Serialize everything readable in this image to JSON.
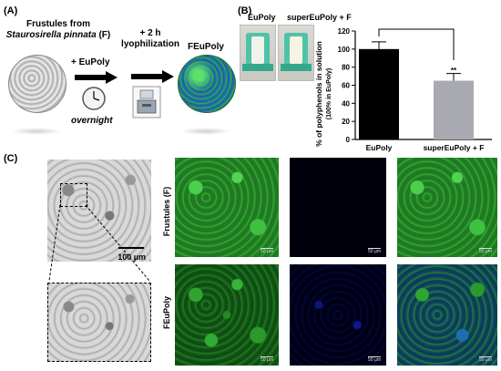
{
  "panel_a": {
    "label": "(A)",
    "frustules_title_line1": "Frustules from",
    "frustules_title_line2": "Staurosirella pinnata",
    "frustules_title_suffix": " (F)",
    "step1_reagent": "+ EuPoly",
    "step1_time": "overnight",
    "step2_time": "+ 2 h",
    "step2_process": "lyophilization",
    "product_label": "FEuPoly"
  },
  "panel_b": {
    "label": "(B)",
    "photo_label_left": "EuPoly",
    "photo_label_right": "superEuPoly + F",
    "significance": "**"
  },
  "chart_data": {
    "type": "bar",
    "categories": [
      "EuPoly",
      "superEuPoly + F"
    ],
    "values": [
      100,
      65
    ],
    "errors": [
      8,
      8
    ],
    "colors": [
      "#000000",
      "#a9a9b2"
    ],
    "ylabel_line1": "% of polyphenols in solution",
    "ylabel_line2": "(100% in EuPoly)",
    "ylim": [
      0,
      120
    ],
    "yticks": [
      "0",
      "20",
      "40",
      "60",
      "80",
      "100",
      "120"
    ]
  },
  "panel_c": {
    "label": "(C)",
    "brightfield_scale": "100 µm",
    "row1_label": "Frustules (F)",
    "row2_label": "FEuPoly",
    "scale_text": "50 µm"
  }
}
